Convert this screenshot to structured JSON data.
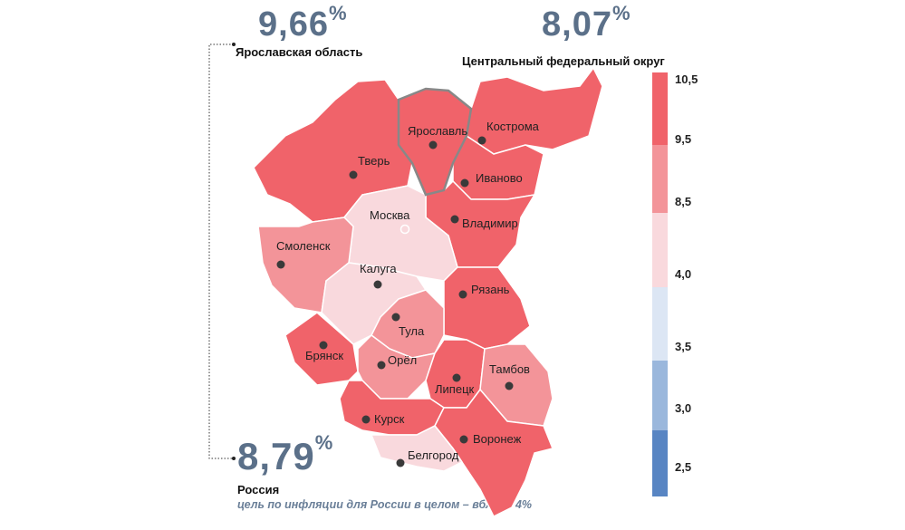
{
  "yaroslavl_stat": {
    "value": "9,66",
    "unit": "%",
    "label": "Ярославская область"
  },
  "cfo_stat": {
    "value": "8,07",
    "unit": "%",
    "label": "Центральный федеральный округ"
  },
  "russia_stat": {
    "value": "8,79",
    "unit": "%",
    "label": "Россия",
    "note": "цель по инфляции для России в целом – вблизи 4%"
  },
  "legend": {
    "ticks": [
      "10,5",
      "9,5",
      "8,5",
      "4,0",
      "3,5",
      "3,0",
      "2,5"
    ],
    "colors": [
      "#f0636a",
      "#f39499",
      "#f9d9dd",
      "#dce6f4",
      "#9ab7dc",
      "#5885c3"
    ]
  },
  "regions": [
    {
      "name": "Тверь",
      "level": "high"
    },
    {
      "name": "Ярославль",
      "level": "high"
    },
    {
      "name": "Кострома",
      "level": "high"
    },
    {
      "name": "Иваново",
      "level": "high"
    },
    {
      "name": "Владимир",
      "level": "high"
    },
    {
      "name": "Москва",
      "level": "low"
    },
    {
      "name": "Смоленск",
      "level": "mid"
    },
    {
      "name": "Калуга",
      "level": "low"
    },
    {
      "name": "Рязань",
      "level": "high"
    },
    {
      "name": "Тула",
      "level": "mid"
    },
    {
      "name": "Брянск",
      "level": "high"
    },
    {
      "name": "Орёл",
      "level": "mid"
    },
    {
      "name": "Липецк",
      "level": "high"
    },
    {
      "name": "Тамбов",
      "level": "mid"
    },
    {
      "name": "Курск",
      "level": "high"
    },
    {
      "name": "Воронеж",
      "level": "high"
    },
    {
      "name": "Белгород",
      "level": "low"
    }
  ]
}
